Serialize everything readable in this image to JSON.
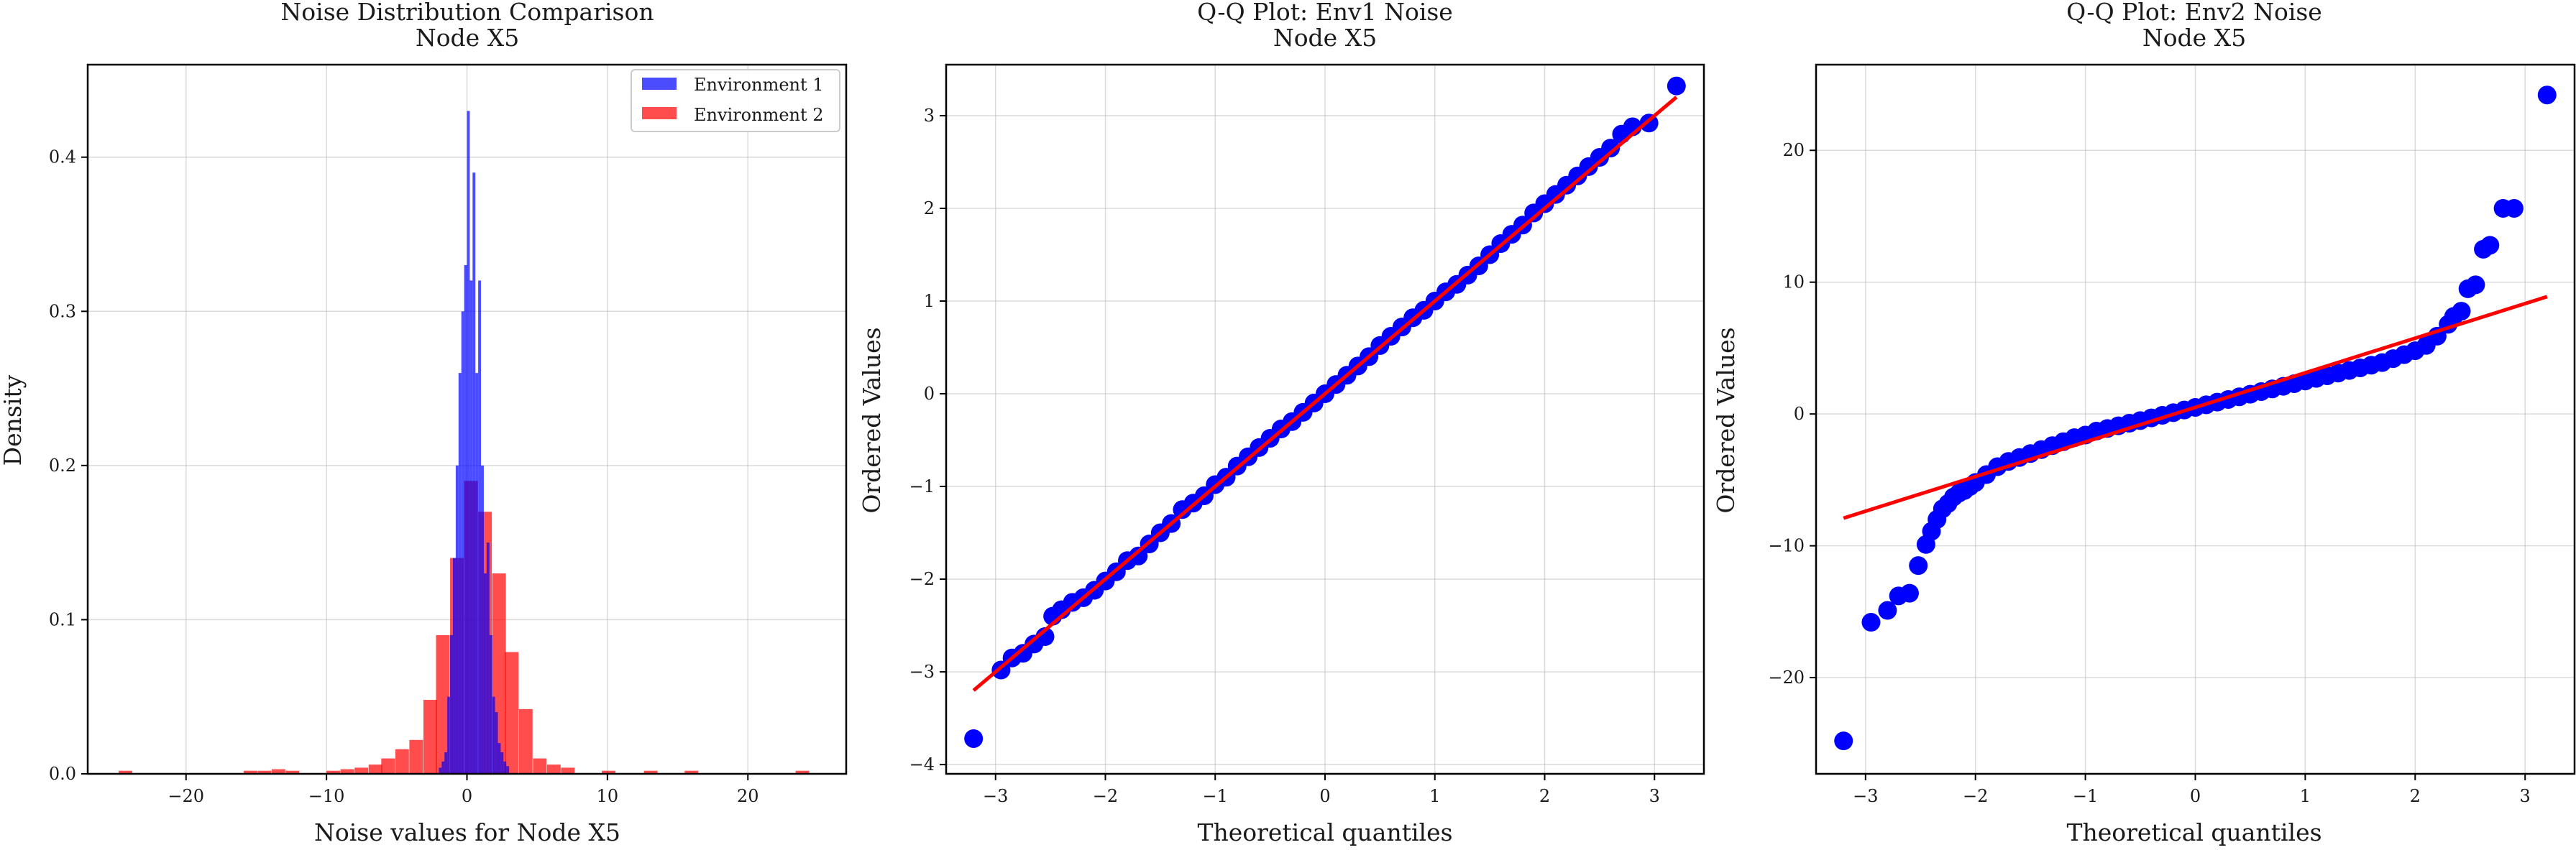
{
  "chart_data": [
    {
      "type": "histogram",
      "title": "Noise Distribution Comparison",
      "subtitle": "Node X5",
      "xlabel": "Noise values for Node X5",
      "ylabel": "Density",
      "xlim": [
        -27,
        27
      ],
      "ylim": [
        0,
        0.46
      ],
      "xticks": [
        -20,
        -10,
        0,
        10,
        20
      ],
      "yticks": [
        0.0,
        0.1,
        0.2,
        0.3,
        0.4
      ],
      "grid": true,
      "legend_position": "top-right",
      "series": [
        {
          "name": "Environment 1",
          "color": "#0000ff",
          "opacity": 0.7,
          "bin_width": 0.2,
          "bins": [
            [
              -2.0,
              0.004
            ],
            [
              -1.8,
              0.008
            ],
            [
              -1.6,
              0.014
            ],
            [
              -1.4,
              0.05
            ],
            [
              -1.2,
              0.09
            ],
            [
              -1.0,
              0.14
            ],
            [
              -0.8,
              0.2
            ],
            [
              -0.6,
              0.26
            ],
            [
              -0.4,
              0.3
            ],
            [
              -0.2,
              0.33
            ],
            [
              0.0,
              0.43
            ],
            [
              0.2,
              0.32
            ],
            [
              0.4,
              0.39
            ],
            [
              0.6,
              0.26
            ],
            [
              0.8,
              0.32
            ],
            [
              1.0,
              0.2
            ],
            [
              1.2,
              0.13
            ],
            [
              1.4,
              0.15
            ],
            [
              1.6,
              0.09
            ],
            [
              1.8,
              0.05
            ],
            [
              2.0,
              0.04
            ],
            [
              2.2,
              0.02
            ],
            [
              2.4,
              0.014
            ],
            [
              2.6,
              0.008
            ],
            [
              2.8,
              0.005
            ]
          ]
        },
        {
          "name": "Environment 2",
          "color": "#ff0000",
          "opacity": 0.7,
          "bin_width": 0.97,
          "bins": [
            [
              -24.8,
              0.002
            ],
            [
              -15.9,
              0.002
            ],
            [
              -14.9,
              0.002
            ],
            [
              -13.9,
              0.003
            ],
            [
              -12.9,
              0.002
            ],
            [
              -10.0,
              0.002
            ],
            [
              -9.0,
              0.003
            ],
            [
              -8.0,
              0.004
            ],
            [
              -7.0,
              0.006
            ],
            [
              -6.1,
              0.01
            ],
            [
              -5.1,
              0.016
            ],
            [
              -4.1,
              0.022
            ],
            [
              -3.1,
              0.048
            ],
            [
              -2.2,
              0.09
            ],
            [
              -1.2,
              0.14
            ],
            [
              -0.2,
              0.19
            ],
            [
              0.8,
              0.17
            ],
            [
              1.8,
              0.13
            ],
            [
              2.7,
              0.079
            ],
            [
              3.7,
              0.042
            ],
            [
              4.7,
              0.01
            ],
            [
              5.7,
              0.006
            ],
            [
              6.7,
              0.004
            ],
            [
              9.6,
              0.002
            ],
            [
              12.6,
              0.002
            ],
            [
              15.5,
              0.002
            ],
            [
              23.4,
              0.002
            ]
          ]
        }
      ]
    },
    {
      "type": "scatter",
      "title": "Q-Q Plot: Env1 Noise",
      "subtitle": "Node X5",
      "xlabel": "Theoretical quantiles",
      "ylabel": "Ordered Values",
      "xlim": [
        -3.45,
        3.45
      ],
      "ylim": [
        -4.1,
        3.55
      ],
      "xticks": [
        -3,
        -2,
        -1,
        0,
        1,
        2,
        3
      ],
      "yticks": [
        -4,
        -3,
        -2,
        -1,
        0,
        1,
        2,
        3
      ],
      "grid": true,
      "points_color": "#0000ff",
      "fit_line": {
        "color": "#ff0000",
        "x": [
          -3.2,
          3.2
        ],
        "y": [
          -3.2,
          3.2
        ]
      },
      "points": [
        [
          -3.2,
          -3.72
        ],
        [
          -2.95,
          -2.98
        ],
        [
          -2.85,
          -2.85
        ],
        [
          -2.75,
          -2.8
        ],
        [
          -2.65,
          -2.7
        ],
        [
          -2.55,
          -2.62
        ],
        [
          -2.48,
          -2.4
        ],
        [
          -2.4,
          -2.33
        ],
        [
          -2.3,
          -2.25
        ],
        [
          -2.2,
          -2.2
        ],
        [
          -2.1,
          -2.12
        ],
        [
          -2.0,
          -2.02
        ],
        [
          -1.9,
          -1.92
        ],
        [
          -1.8,
          -1.8
        ],
        [
          -1.7,
          -1.75
        ],
        [
          -1.6,
          -1.62
        ],
        [
          -1.5,
          -1.5
        ],
        [
          -1.4,
          -1.4
        ],
        [
          -1.3,
          -1.25
        ],
        [
          -1.2,
          -1.18
        ],
        [
          -1.1,
          -1.1
        ],
        [
          -1.0,
          -0.98
        ],
        [
          -0.9,
          -0.9
        ],
        [
          -0.8,
          -0.78
        ],
        [
          -0.7,
          -0.68
        ],
        [
          -0.6,
          -0.58
        ],
        [
          -0.5,
          -0.48
        ],
        [
          -0.4,
          -0.38
        ],
        [
          -0.3,
          -0.3
        ],
        [
          -0.2,
          -0.2
        ],
        [
          -0.1,
          -0.1
        ],
        [
          0.0,
          0.0
        ],
        [
          0.1,
          0.1
        ],
        [
          0.2,
          0.2
        ],
        [
          0.3,
          0.3
        ],
        [
          0.4,
          0.4
        ],
        [
          0.5,
          0.52
        ],
        [
          0.6,
          0.62
        ],
        [
          0.7,
          0.72
        ],
        [
          0.8,
          0.82
        ],
        [
          0.9,
          0.9
        ],
        [
          1.0,
          1.0
        ],
        [
          1.1,
          1.1
        ],
        [
          1.2,
          1.18
        ],
        [
          1.3,
          1.28
        ],
        [
          1.4,
          1.38
        ],
        [
          1.5,
          1.5
        ],
        [
          1.6,
          1.62
        ],
        [
          1.7,
          1.72
        ],
        [
          1.8,
          1.82
        ],
        [
          1.9,
          1.95
        ],
        [
          2.0,
          2.05
        ],
        [
          2.1,
          2.15
        ],
        [
          2.2,
          2.25
        ],
        [
          2.3,
          2.35
        ],
        [
          2.4,
          2.45
        ],
        [
          2.5,
          2.55
        ],
        [
          2.6,
          2.65
        ],
        [
          2.7,
          2.8
        ],
        [
          2.8,
          2.88
        ],
        [
          2.95,
          2.92
        ],
        [
          3.2,
          3.32
        ]
      ]
    },
    {
      "type": "scatter",
      "title": "Q-Q Plot: Env2 Noise",
      "subtitle": "Node X5",
      "xlabel": "Theoretical quantiles",
      "ylabel": "Ordered Values",
      "xlim": [
        -3.45,
        3.45
      ],
      "ylim": [
        -27.3,
        26.5
      ],
      "xticks": [
        -3,
        -2,
        -1,
        0,
        1,
        2,
        3
      ],
      "yticks": [
        -20,
        -10,
        0,
        10,
        20
      ],
      "grid": true,
      "points_color": "#0000ff",
      "fit_line": {
        "color": "#ff0000",
        "x": [
          -3.2,
          3.2
        ],
        "y": [
          -7.9,
          8.9
        ]
      },
      "points": [
        [
          -3.2,
          -24.8
        ],
        [
          -2.95,
          -15.8
        ],
        [
          -2.8,
          -14.9
        ],
        [
          -2.7,
          -13.8
        ],
        [
          -2.6,
          -13.6
        ],
        [
          -2.52,
          -11.5
        ],
        [
          -2.45,
          -9.9
        ],
        [
          -2.4,
          -8.9
        ],
        [
          -2.35,
          -8.0
        ],
        [
          -2.3,
          -7.2
        ],
        [
          -2.25,
          -6.8
        ],
        [
          -2.2,
          -6.3
        ],
        [
          -2.15,
          -6.0
        ],
        [
          -2.1,
          -5.8
        ],
        [
          -2.05,
          -5.5
        ],
        [
          -2.0,
          -5.2
        ],
        [
          -1.9,
          -4.6
        ],
        [
          -1.8,
          -4.0
        ],
        [
          -1.7,
          -3.6
        ],
        [
          -1.6,
          -3.3
        ],
        [
          -1.5,
          -3.0
        ],
        [
          -1.4,
          -2.7
        ],
        [
          -1.3,
          -2.4
        ],
        [
          -1.2,
          -2.1
        ],
        [
          -1.1,
          -1.8
        ],
        [
          -1.0,
          -1.6
        ],
        [
          -0.9,
          -1.3
        ],
        [
          -0.8,
          -1.1
        ],
        [
          -0.7,
          -0.9
        ],
        [
          -0.6,
          -0.7
        ],
        [
          -0.5,
          -0.5
        ],
        [
          -0.4,
          -0.3
        ],
        [
          -0.3,
          -0.1
        ],
        [
          -0.2,
          0.1
        ],
        [
          -0.1,
          0.3
        ],
        [
          0.0,
          0.5
        ],
        [
          0.1,
          0.7
        ],
        [
          0.2,
          0.9
        ],
        [
          0.3,
          1.1
        ],
        [
          0.4,
          1.3
        ],
        [
          0.5,
          1.5
        ],
        [
          0.6,
          1.7
        ],
        [
          0.7,
          1.9
        ],
        [
          0.8,
          2.1
        ],
        [
          0.9,
          2.3
        ],
        [
          1.0,
          2.5
        ],
        [
          1.1,
          2.7
        ],
        [
          1.2,
          2.9
        ],
        [
          1.3,
          3.1
        ],
        [
          1.4,
          3.3
        ],
        [
          1.5,
          3.5
        ],
        [
          1.6,
          3.7
        ],
        [
          1.7,
          3.9
        ],
        [
          1.8,
          4.2
        ],
        [
          1.9,
          4.5
        ],
        [
          2.0,
          4.8
        ],
        [
          2.1,
          5.2
        ],
        [
          2.2,
          5.9
        ],
        [
          2.3,
          6.8
        ],
        [
          2.35,
          7.4
        ],
        [
          2.42,
          7.8
        ],
        [
          2.48,
          9.5
        ],
        [
          2.55,
          9.8
        ],
        [
          2.62,
          12.5
        ],
        [
          2.68,
          12.8
        ],
        [
          2.8,
          15.6
        ],
        [
          2.9,
          15.6
        ],
        [
          3.2,
          24.2
        ]
      ]
    }
  ]
}
